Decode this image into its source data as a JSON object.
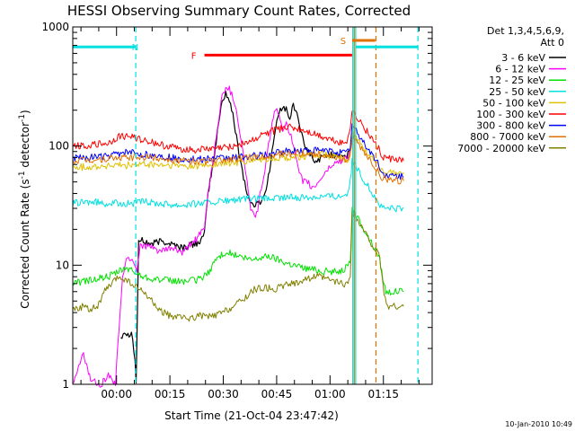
{
  "chart_data": {
    "type": "line",
    "title": "HESSI Observing Summary Count Rates, Corrected",
    "xlabel": "Start Time (21-Oct-04 23:47:42)",
    "ylabel_parts": [
      "Corrected Count Rate (s",
      "-1",
      " detector",
      "-1",
      ")"
    ],
    "yscale": "log",
    "ylim": [
      1,
      1000
    ],
    "xlim_minutes": [
      0,
      101
    ],
    "x_ticks": [
      {
        "label": "00:00",
        "min": 12.3
      },
      {
        "label": "00:15",
        "min": 27.3
      },
      {
        "label": "00:30",
        "min": 42.3
      },
      {
        "label": "00:45",
        "min": 57.3
      },
      {
        "label": "01:00",
        "min": 72.3
      },
      {
        "label": "01:15",
        "min": 87.3
      }
    ],
    "y_ticks": [
      {
        "label": "1",
        "value": 1
      },
      {
        "label": "10",
        "value": 10
      },
      {
        "label": "100",
        "value": 100
      },
      {
        "label": "1000",
        "value": 1000
      }
    ],
    "legend_title": [
      "Det 1,3,4,5,6,9,",
      "Att 0"
    ],
    "timestamp": "10-Jan-2010 10:49",
    "annotations": [
      {
        "label": "N",
        "color": "#00e0e0",
        "x_min": 17.5,
        "y": 680
      },
      {
        "label": "F",
        "color": "#ff0000",
        "x_min": 34.0,
        "y": 580
      },
      {
        "label": "S",
        "color": "#e07000",
        "x_min": 76.0,
        "y": 770
      }
    ],
    "bars": [
      {
        "color": "#00e0e0",
        "from": 0,
        "to": 17.7,
        "value": 680
      },
      {
        "color": "#00e0e0",
        "from": 79.5,
        "to": 97.0,
        "value": 680
      },
      {
        "color": "#ff0000",
        "from": 37.0,
        "to": 78.5,
        "value": 580
      },
      {
        "color": "#e07000",
        "from": 78.5,
        "to": 85.0,
        "value": 770
      }
    ],
    "vlines": [
      {
        "color": "#00e0e0",
        "x": 17.7,
        "dashed": true
      },
      {
        "color": "#00e0e0",
        "x": 78.7,
        "dashed": false
      },
      {
        "color": "#00e0e0",
        "x": 79.5,
        "dashed": false
      },
      {
        "color": "#00e0e0",
        "x": 97.0,
        "dashed": true
      },
      {
        "color": "#e07000",
        "x": 79.1,
        "dashed": false
      },
      {
        "color": "#e07000",
        "x": 85.2,
        "dashed": true
      }
    ],
    "series": [
      {
        "name": "3 - 6 keV",
        "color": "#000000",
        "x": [
          13.5,
          14.5,
          15.5,
          16.5,
          17.5,
          17.8,
          18.5,
          19.5,
          22,
          25,
          28,
          31,
          34,
          36,
          37,
          38,
          40,
          41,
          42,
          43,
          44,
          45,
          46,
          47,
          48,
          49,
          50,
          51,
          52,
          53,
          54,
          55,
          56,
          57,
          58,
          59,
          60,
          61,
          62,
          63,
          64,
          65,
          66,
          67,
          68,
          69,
          70,
          71,
          72,
          73,
          74,
          75,
          76,
          77,
          78,
          78.5
        ],
        "y": [
          2.5,
          2.8,
          2.6,
          2.8,
          1.6,
          1.0,
          16,
          16,
          15,
          16,
          15,
          14,
          15,
          16,
          18,
          40,
          90,
          160,
          240,
          280,
          240,
          180,
          120,
          80,
          55,
          40,
          33,
          32,
          33,
          35,
          40,
          55,
          90,
          140,
          190,
          220,
          200,
          170,
          220,
          190,
          140,
          100,
          90,
          85,
          70,
          78,
          80,
          82,
          85,
          84,
          86,
          85,
          84,
          82,
          90,
          120
        ]
      },
      {
        "name": "6 - 12 keV",
        "color": "#ff00ff",
        "x": [
          0,
          3,
          5,
          8,
          10,
          12,
          13,
          14,
          15,
          16,
          17,
          17.5,
          18,
          19,
          22,
          25,
          28,
          31,
          33,
          35,
          37,
          38,
          40,
          41,
          42,
          43,
          44,
          45,
          46,
          47,
          48,
          49,
          50,
          51,
          52,
          53,
          54,
          55,
          56,
          57,
          58,
          59,
          60,
          61,
          62,
          63,
          64,
          65,
          66,
          67,
          68,
          69,
          70,
          71,
          72,
          73,
          74,
          75,
          76,
          77,
          78,
          78.5
        ],
        "y": [
          1.0,
          1.8,
          1.1,
          1.0,
          1.2,
          1.0,
          3.0,
          8.0,
          11,
          11.5,
          11,
          10,
          9,
          15,
          14,
          13,
          14,
          12.5,
          15,
          17,
          20,
          40,
          100,
          170,
          260,
          320,
          300,
          260,
          200,
          130,
          80,
          50,
          30,
          25,
          30,
          45,
          60,
          100,
          160,
          200,
          180,
          140,
          160,
          130,
          100,
          70,
          55,
          50,
          50,
          45,
          45,
          50,
          55,
          60,
          65,
          70,
          72,
          75,
          78,
          80,
          90,
          110
        ]
      },
      {
        "name": "12 - 25 keV",
        "color": "#00e000",
        "x": [
          0,
          5,
          10,
          12,
          15,
          18,
          20,
          25,
          30,
          35,
          38,
          40,
          43,
          46,
          50,
          55,
          60,
          65,
          70,
          73,
          75,
          77,
          78,
          78.5,
          86,
          86.8,
          87.5,
          88,
          89,
          91,
          93
        ],
        "y": [
          7,
          7.5,
          8,
          8.5,
          9.5,
          8.5,
          8,
          7.5,
          7.3,
          7.5,
          8.5,
          11,
          13,
          12,
          11,
          12,
          10.5,
          9.5,
          9,
          8.8,
          9,
          9.5,
          11,
          30,
          12,
          9,
          7,
          6,
          6,
          6,
          6
        ]
      },
      {
        "name": "25 - 50 keV",
        "color": "#00e0e0",
        "x": [
          0,
          5,
          10,
          14,
          17,
          20,
          25,
          30,
          35,
          40,
          45,
          50,
          55,
          60,
          65,
          70,
          75,
          77,
          78,
          78.5,
          86,
          87,
          88,
          90,
          93
        ],
        "y": [
          33,
          34,
          33,
          33,
          33,
          34,
          33,
          32,
          33,
          34,
          35,
          36,
          36,
          37,
          37,
          38,
          38,
          40,
          50,
          75,
          33,
          30,
          30,
          30,
          30
        ]
      },
      {
        "name": "50 - 100 keV",
        "color": "#e0c000",
        "x": [
          0,
          5,
          10,
          15,
          20,
          25,
          30,
          35,
          40,
          45,
          50,
          55,
          60,
          65,
          70,
          75,
          77,
          78,
          78.5,
          86,
          87,
          89,
          93
        ],
        "y": [
          66,
          67,
          68,
          69,
          70,
          69,
          68,
          68,
          70,
          72,
          75,
          78,
          80,
          82,
          85,
          80,
          75,
          85,
          130,
          66,
          62,
          60,
          60
        ]
      },
      {
        "name": "100 - 300 keV",
        "color": "#ff0000",
        "x": [
          0,
          5,
          10,
          13,
          17,
          20,
          25,
          30,
          35,
          40,
          45,
          50,
          55,
          60,
          65,
          70,
          74,
          76,
          77,
          78,
          78.5,
          86,
          87,
          89,
          93
        ],
        "y": [
          100,
          102,
          105,
          120,
          120,
          112,
          102,
          95,
          93,
          95,
          100,
          110,
          130,
          145,
          135,
          120,
          110,
          105,
          110,
          150,
          200,
          95,
          80,
          78,
          75
        ]
      },
      {
        "name": "300 - 800 keV",
        "color": "#0000ff",
        "x": [
          0,
          5,
          10,
          14,
          17,
          20,
          25,
          30,
          35,
          40,
          45,
          50,
          55,
          60,
          65,
          70,
          74,
          76,
          77,
          78,
          78.5,
          86,
          87,
          89,
          93
        ],
        "y": [
          80,
          80,
          82,
          88,
          88,
          85,
          82,
          78,
          77,
          78,
          80,
          82,
          85,
          90,
          92,
          92,
          90,
          88,
          88,
          100,
          150,
          70,
          58,
          56,
          55
        ]
      },
      {
        "name": "800 - 7000 keV",
        "color": "#e07000",
        "x": [
          0,
          5,
          10,
          15,
          20,
          25,
          30,
          35,
          40,
          45,
          50,
          55,
          60,
          65,
          70,
          74,
          76,
          77,
          78,
          78.5,
          86,
          87,
          89,
          93
        ],
        "y": [
          75,
          76,
          78,
          80,
          81,
          79,
          75,
          74,
          75,
          78,
          80,
          83,
          86,
          87,
          85,
          80,
          75,
          73,
          85,
          120,
          60,
          54,
          52,
          51
        ]
      },
      {
        "name": "7000 - 20000 keV",
        "color": "#808000",
        "x": [
          0,
          3,
          5,
          7,
          9,
          11,
          13,
          15,
          18,
          21,
          24,
          27,
          30,
          33,
          36,
          39,
          42,
          45,
          48,
          51,
          54,
          57,
          60,
          63,
          66,
          69,
          72,
          74,
          76,
          77,
          78,
          78.5,
          86,
          86.8,
          87.5,
          88.5,
          90,
          93
        ],
        "y": [
          4.3,
          4.5,
          4.3,
          4.5,
          6.0,
          7.0,
          8.0,
          7.5,
          6.5,
          5.5,
          4.3,
          3.8,
          3.6,
          3.6,
          3.8,
          3.7,
          4.0,
          4.5,
          5.2,
          6.3,
          6.5,
          6.3,
          6.8,
          7.2,
          7.8,
          8.0,
          7.5,
          7.2,
          7.0,
          6.8,
          8.0,
          28,
          12,
          9,
          5.5,
          4.5,
          4.5,
          4.5
        ]
      }
    ]
  }
}
